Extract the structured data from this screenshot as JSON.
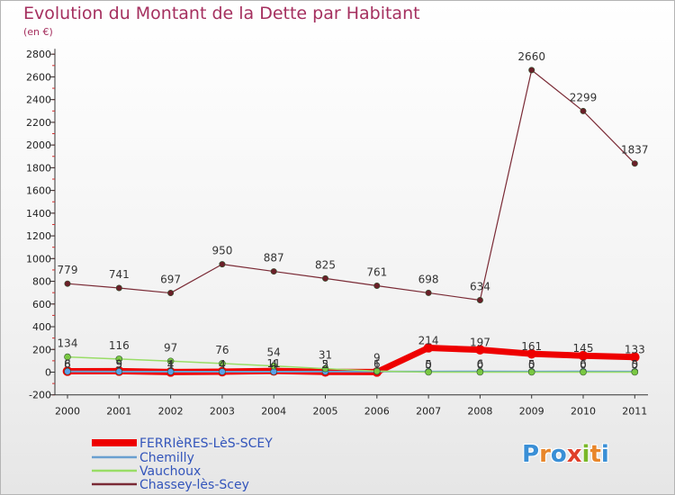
{
  "header": {
    "title": "Evolution du Montant de la Dette par Habitant",
    "subtitle": "(en €)"
  },
  "logo": {
    "text": "Proxiti",
    "letter_colors": [
      "#3a8fd6",
      "#e8862a",
      "#3a8fd6",
      "#e0402a",
      "#7ab82a",
      "#e8862a",
      "#3a8fd6"
    ]
  },
  "colors": {
    "title": "#a5305f",
    "ferrieres": "#ee0000",
    "chemilly": "#6aa0d0",
    "vauchoux": "#99dd66",
    "chassey": "#7a2a35"
  },
  "chart_data": {
    "type": "line",
    "x": [
      "2000",
      "2001",
      "2002",
      "2003",
      "2004",
      "2005",
      "2006",
      "2007",
      "2008",
      "2009",
      "2010",
      "2011"
    ],
    "ylim": [
      -200,
      2800
    ],
    "yticks": [
      -200,
      0,
      200,
      400,
      600,
      800,
      1000,
      1200,
      1400,
      1600,
      1800,
      2000,
      2200,
      2400,
      2600,
      2800
    ],
    "grid": false,
    "legend_position": "bottom-left",
    "series": [
      {
        "name": "FERRIèRES-LèS-SCEY",
        "values": [
          8,
          9,
          1,
          4,
          11,
          2,
          1,
          214,
          197,
          161,
          145,
          133
        ],
        "labels": [
          "8",
          "9",
          "1",
          "4",
          "11",
          "2",
          "1",
          "214",
          "197",
          "161",
          "145",
          "133"
        ]
      },
      {
        "name": "Chemilly",
        "values": [
          6,
          5,
          4,
          4,
          4,
          5,
          6,
          5,
          6,
          5,
          6,
          5
        ],
        "labels": [
          "6",
          "5",
          "4",
          "4",
          "4",
          "5",
          "6",
          "5",
          "6",
          "5",
          "6",
          "5"
        ]
      },
      {
        "name": "Vauchoux",
        "values": [
          134,
          116,
          97,
          76,
          54,
          31,
          9,
          0,
          0,
          0,
          0,
          0
        ],
        "labels": [
          "134",
          "116",
          "97",
          "76",
          "54",
          "31",
          "9",
          "0",
          "0",
          "0",
          "0",
          "0"
        ]
      },
      {
        "name": "Chassey-lès-Scey",
        "values": [
          779,
          741,
          697,
          950,
          887,
          825,
          761,
          698,
          634,
          2660,
          2299,
          1837
        ],
        "labels": [
          "779",
          "741",
          "697",
          "950",
          "887",
          "825",
          "761",
          "698",
          "634",
          "2660",
          "2299",
          "1837"
        ]
      }
    ]
  }
}
